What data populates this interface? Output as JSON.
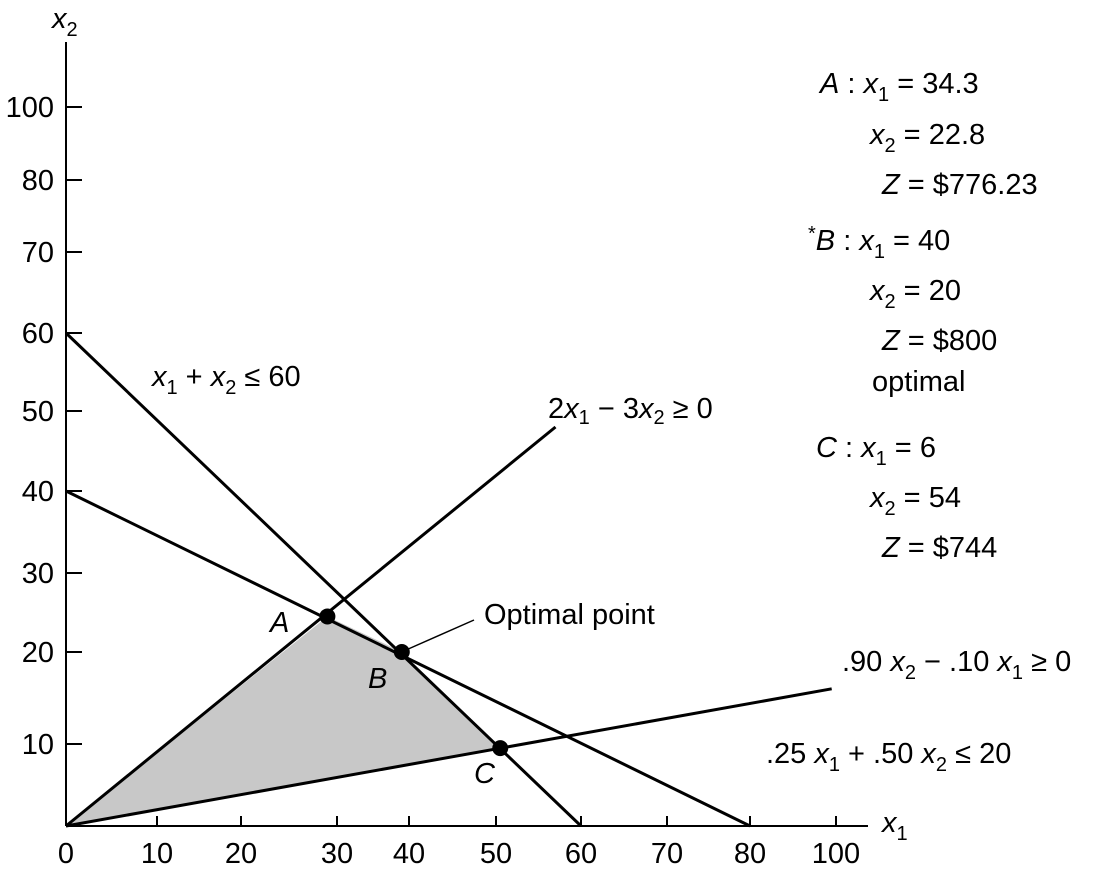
{
  "chart_data": {
    "type": "line",
    "xlabel": "x",
    "xlabel_sub": "1",
    "ylabel": "x",
    "ylabel_sub": "2",
    "xlim": [
      0,
      100
    ],
    "ylim": [
      0,
      100
    ],
    "x_ticks": [
      "0",
      "10",
      "20",
      "30",
      "40",
      "50",
      "60",
      "70",
      "80",
      "100"
    ],
    "y_ticks": [
      "10",
      "20",
      "30",
      "40",
      "50",
      "60",
      "70",
      "80",
      "100"
    ],
    "constraints": [
      {
        "label": "x₁ + x₂ ≤ 60",
        "p1": [
          0,
          60
        ],
        "p2": [
          60,
          0
        ]
      },
      {
        "label": "2x₁ − 3x₂ ≥ 0",
        "p1": [
          0,
          0
        ],
        "p2": [
          57,
          48
        ]
      },
      {
        "label": ".90 x₂ − .10 x₁ ≥ 0",
        "p1": [
          0,
          0
        ],
        "p2": [
          99,
          16
        ]
      },
      {
        "label": ".25 x₁ + .50 x₂ ≤ 20",
        "p1": [
          0,
          40
        ],
        "p2": [
          80,
          0
        ]
      }
    ],
    "feasible_region": [
      [
        0,
        0
      ],
      [
        29,
        24.5
      ],
      [
        39,
        20
      ],
      [
        50.5,
        9.5
      ]
    ],
    "points": [
      {
        "name": "A",
        "x": 29,
        "y": 24.5
      },
      {
        "name": "B",
        "x": 39,
        "y": 20
      },
      {
        "name": "C",
        "x": 50.5,
        "y": 9.5
      }
    ],
    "callout": "Optimal point",
    "solutions": {
      "A": {
        "label": "A",
        "x1": "34.3",
        "x2": "22.8",
        "z": "$776.23"
      },
      "B": {
        "label": "B",
        "star": "*",
        "x1": "40",
        "x2": "20",
        "z": "$800",
        "note": "optimal"
      },
      "C": {
        "label": "C",
        "x1": "6",
        "x2": "54",
        "z": "$744"
      }
    }
  }
}
